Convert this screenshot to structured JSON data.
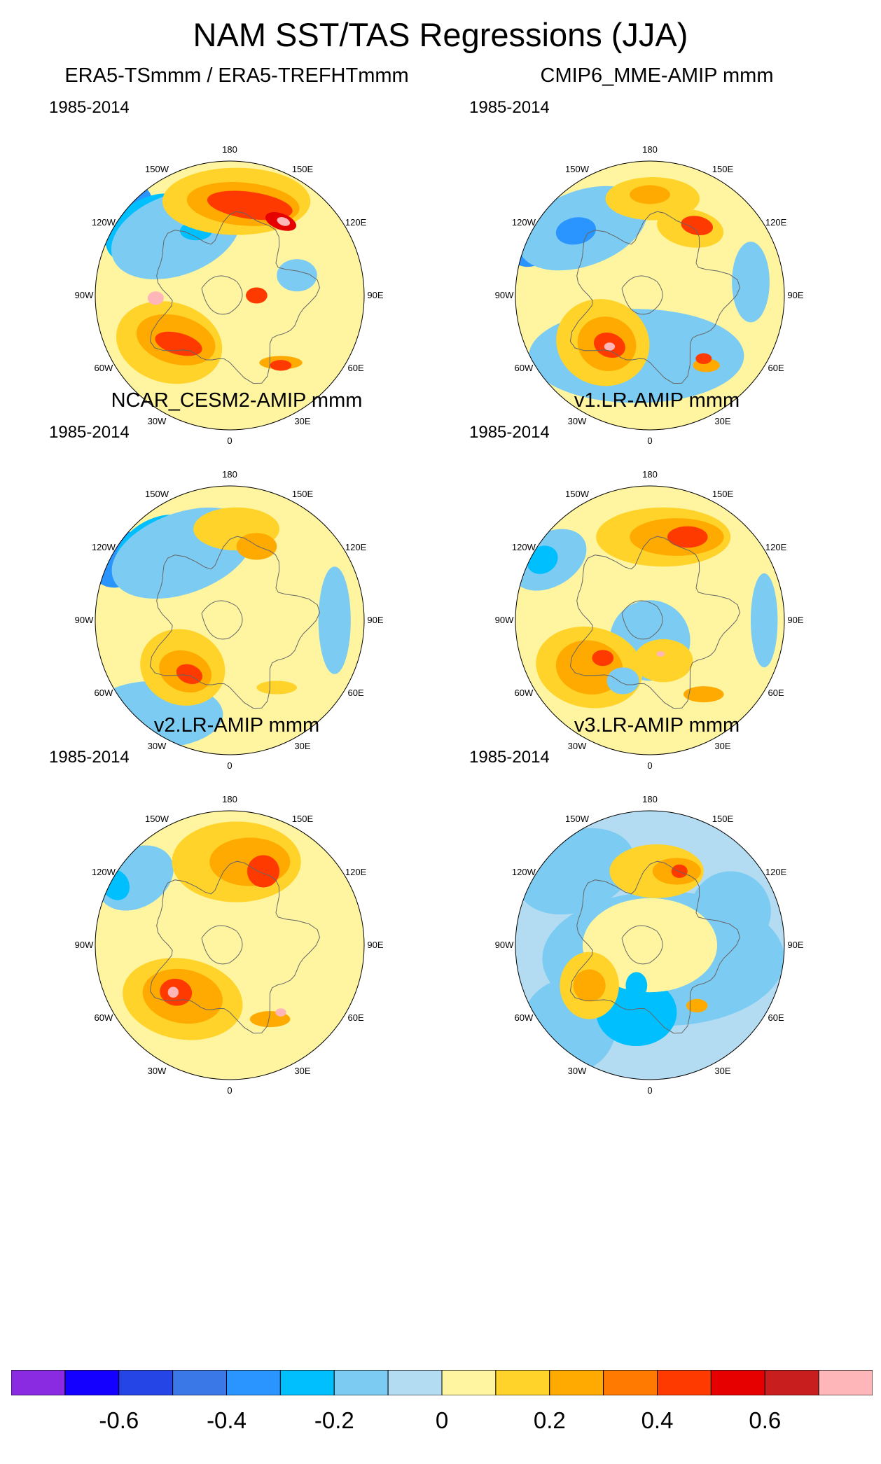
{
  "figure": {
    "title": "NAM SST/TAS Regressions (JJA)"
  },
  "panels": [
    {
      "title": "ERA5-TSmmm / ERA5-TREFHTmmm",
      "period": "1985-2014"
    },
    {
      "title": "CMIP6_MME-AMIP  mmm",
      "period": "1985-2014"
    },
    {
      "title": "NCAR_CESM2-AMIP  mmm",
      "period": "1985-2014"
    },
    {
      "title": "v1.LR-AMIP  mmm",
      "period": "1985-2014"
    },
    {
      "title": "v2.LR-AMIP  mmm",
      "period": "1985-2014"
    },
    {
      "title": "v3.LR-AMIP  mmm",
      "period": "1985-2014"
    }
  ],
  "longitude_labels": [
    "180",
    "150E",
    "120E",
    "90E",
    "60E",
    "30E",
    "0",
    "30W",
    "60W",
    "90W",
    "120W",
    "150W"
  ],
  "chart_data": {
    "type": "heatmap",
    "projection": "polar stereographic (Northern Hemisphere)",
    "variable": "NAM regression of SST/TAS",
    "season": "JJA",
    "colorbar": {
      "levels": [
        -0.7,
        -0.6,
        -0.5,
        -0.4,
        -0.3,
        -0.2,
        -0.1,
        0,
        0.1,
        0.2,
        0.3,
        0.4,
        0.5,
        0.6,
        0.7
      ],
      "tick_values": [
        -0.6,
        -0.4,
        -0.2,
        0,
        0.2,
        0.4,
        0.6
      ],
      "tick_labels": [
        "-0.6",
        "-0.4",
        "-0.2",
        "0",
        "0.2",
        "0.4",
        "0.6"
      ],
      "colors": [
        "#8a2be2",
        "#1400ff",
        "#2645e6",
        "#3a78e8",
        "#2a95ff",
        "#00bfff",
        "#7ccbf2",
        "#b3dcf2",
        "#fff5a0",
        "#ffd32a",
        "#ffaa00",
        "#ff7a00",
        "#ff3a00",
        "#e60000",
        "#c81e1e",
        "#ffb6b9"
      ]
    }
  }
}
